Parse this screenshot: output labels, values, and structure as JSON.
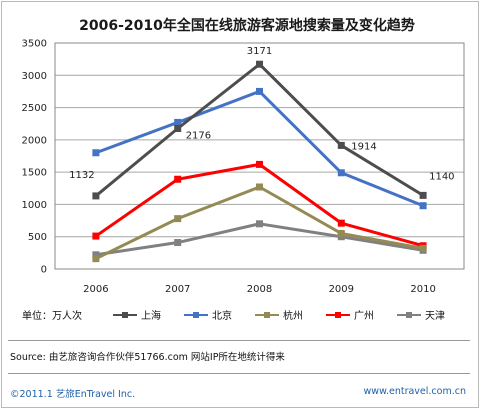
{
  "chart_data": {
    "type": "line",
    "title": "2006-2010年全国在线旅游客源地搜索量及变化趋势",
    "categories": [
      "2006",
      "2007",
      "2008",
      "2009",
      "2010"
    ],
    "ylim": [
      0,
      3500
    ],
    "yticks": [
      0,
      500,
      1000,
      1500,
      2000,
      2500,
      3000,
      3500
    ],
    "grid": true,
    "unit_label": "单位：万人次",
    "legend_position": "bottom",
    "series": [
      {
        "name": "上海",
        "color": "#4d4d4d",
        "values": [
          1132,
          2176,
          3171,
          1914,
          1140
        ]
      },
      {
        "name": "北京",
        "color": "#4472c4",
        "values": [
          1800,
          2270,
          2750,
          1490,
          980
        ]
      },
      {
        "name": "杭州",
        "color": "#948a54",
        "values": [
          160,
          780,
          1270,
          550,
          320
        ]
      },
      {
        "name": "广州",
        "color": "#ff0000",
        "values": [
          510,
          1390,
          1620,
          710,
          360
        ]
      },
      {
        "name": "天津",
        "color": "#808080",
        "values": [
          220,
          410,
          700,
          500,
          290
        ]
      }
    ],
    "data_labels": [
      "1132",
      "2176",
      "3171",
      "1914",
      "1140"
    ]
  },
  "source_text": "Source: 由艺旅咨询合作伙伴51766.com 网站IP所在地统计得来",
  "footer": {
    "copyright": "©2011.1 艺旅EnTravel Inc.",
    "website": "www.entravel.com.cn"
  }
}
